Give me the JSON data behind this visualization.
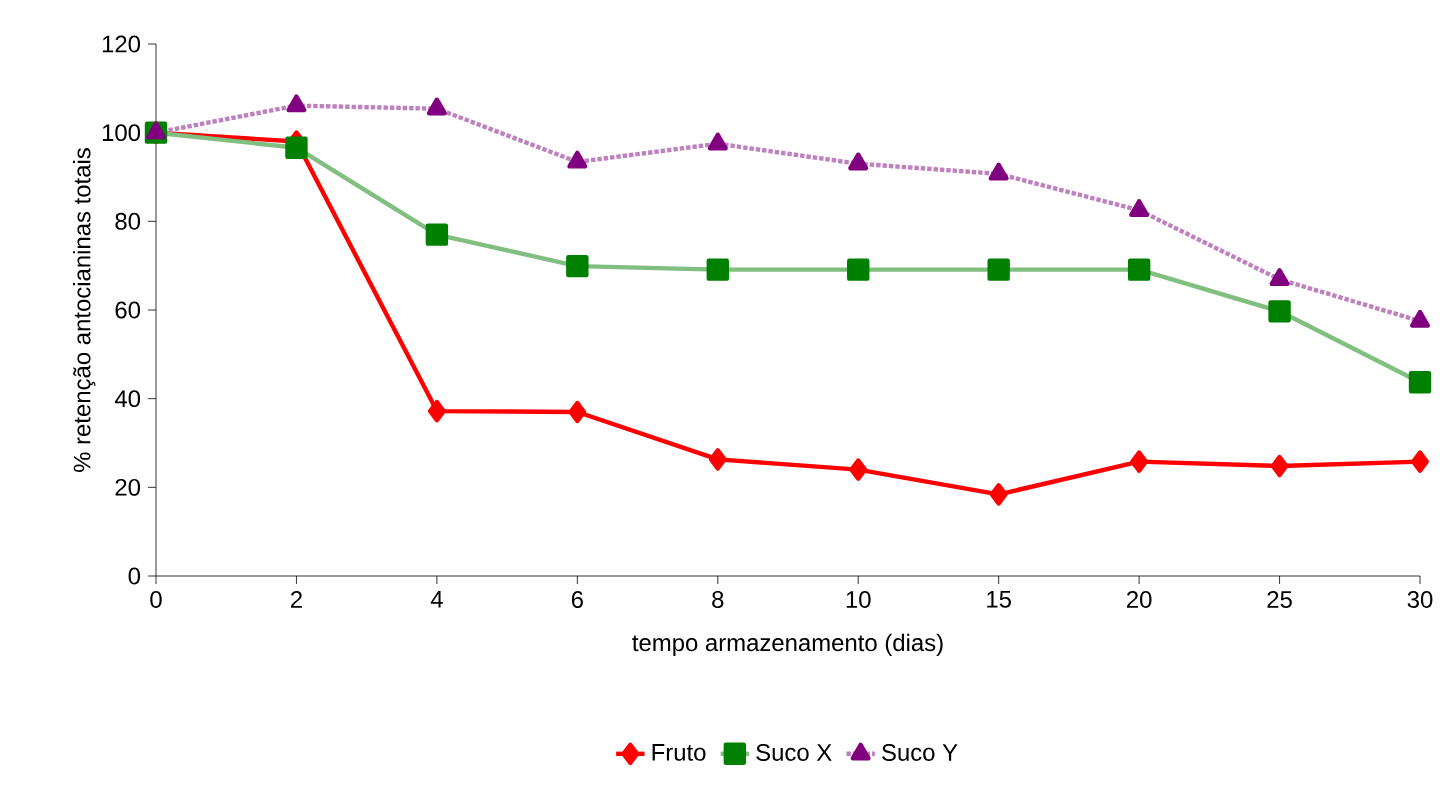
{
  "chart_data": {
    "type": "line",
    "xlabel": "tempo armazenamento (dias)",
    "ylabel": "% retenção antocianinas totais",
    "categories": [
      "0",
      "2",
      "4",
      "6",
      "8",
      "10",
      "15",
      "20",
      "25",
      "30"
    ],
    "series": [
      {
        "name": "Fruto",
        "color": "#ff0000",
        "marker": "diamond",
        "line_style": "solid",
        "values": [
          100,
          98,
          37.2,
          37,
          26.3,
          24,
          18.4,
          25.8,
          24.8,
          25.8
        ]
      },
      {
        "name": "Suco X",
        "color": "#008000",
        "marker": "square",
        "line_style": "solid",
        "values": [
          100,
          96.6,
          77,
          69.9,
          69.1,
          69.1,
          69.1,
          69.1,
          59.7,
          43.7
        ]
      },
      {
        "name": "Suco Y",
        "color": "#800080",
        "marker": "triangle",
        "line_style": "dotted",
        "values": [
          100,
          106.1,
          105.4,
          93.4,
          97.5,
          93,
          90.7,
          82.5,
          66.9,
          57.5
        ]
      }
    ],
    "ylim": [
      0,
      120
    ],
    "yticks": [
      0,
      20,
      40,
      60,
      80,
      100,
      120
    ],
    "grid": false,
    "legend": "bottom"
  }
}
